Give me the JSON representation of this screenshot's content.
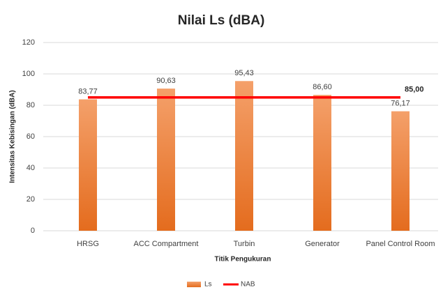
{
  "chart_data": {
    "type": "bar",
    "title": "Nilai Ls (dBA)",
    "x_label": "Titik Pengukuran",
    "y_label": "Intensitas Kebisingan (dBA)",
    "categories": [
      "HRSG",
      "ACC Compartment",
      "Turbin",
      "Generator",
      "Panel Control Room"
    ],
    "series": [
      {
        "name": "Ls",
        "type": "bar",
        "color": "#ed7d31",
        "values": [
          83.77,
          90.63,
          95.43,
          86.6,
          76.17
        ],
        "value_labels": [
          "83,77",
          "90,63",
          "95,43",
          "86,60",
          "76,17"
        ]
      },
      {
        "name": "NAB",
        "type": "line",
        "color": "#ff0000",
        "values": [
          85,
          85,
          85,
          85,
          85
        ],
        "value_labels": [
          null,
          null,
          null,
          null,
          "85,00"
        ]
      }
    ],
    "ylim": [
      0,
      120
    ],
    "yticks": [
      0,
      20,
      40,
      60,
      80,
      100,
      120
    ],
    "grid": true,
    "legend": "bottom"
  }
}
